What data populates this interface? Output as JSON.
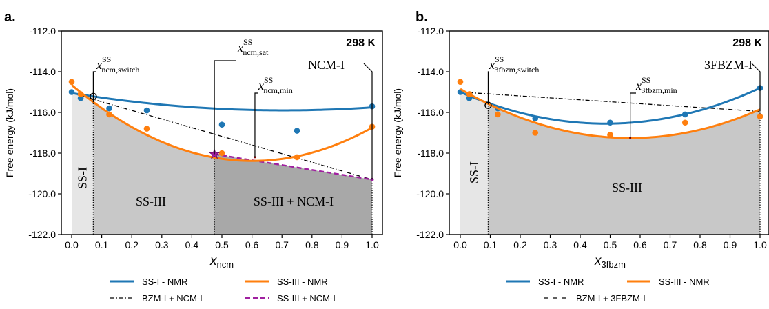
{
  "chart_data": [
    {
      "panel_label": "a.",
      "type": "scatter",
      "temperature_label": "298 K",
      "ylabel": "Free energy (kJ/mol)",
      "xlabel_main": "x",
      "xlabel_sub": "ncm",
      "xlim": [
        0,
        1
      ],
      "ylim": [
        -122,
        -112
      ],
      "xticks": [
        "0.0",
        "0.1",
        "0.2",
        "0.3",
        "0.4",
        "0.5",
        "0.6",
        "0.7",
        "0.8",
        "0.9",
        "1.0"
      ],
      "yticks": [
        "-112.0",
        "-114.0",
        "-116.0",
        "-118.0",
        "-120.0",
        "-122.0"
      ],
      "series": [
        {
          "name": "SS-I - NMR",
          "color": "#1f77b4",
          "x": [
            0.0,
            0.03,
            0.125,
            0.25,
            0.5,
            0.75,
            1.0
          ],
          "y": [
            -115.0,
            -115.3,
            -115.8,
            -115.9,
            -116.6,
            -116.9,
            -115.7
          ],
          "fit": [
            -115.05,
            -2.4,
            1.7
          ]
        },
        {
          "name": "SS-III - NMR",
          "color": "#ff7f0e",
          "x": [
            0.0,
            0.03,
            0.125,
            0.25,
            0.5,
            0.75,
            1.0
          ],
          "y": [
            -114.5,
            -115.1,
            -116.1,
            -116.8,
            -118.0,
            -118.2,
            -116.7
          ],
          "fit": [
            -114.65,
            -12.4,
            10.3
          ]
        },
        {
          "name": "BZM-I + NCM-I",
          "color": "#000000",
          "x": [
            0.0,
            1.0
          ],
          "y": [
            -115.05,
            -119.3
          ]
        },
        {
          "name": "SS-III + NCM-I",
          "color": "#a020a0",
          "x": [
            0.475,
            1.0
          ],
          "y": [
            -118.05,
            -119.3
          ]
        }
      ],
      "region_labels": [
        "SS-I",
        "SS-III",
        "SS-III + NCM-I"
      ],
      "region_bounds": [
        0.0,
        0.072,
        0.475,
        1.0
      ],
      "annotations": [
        {
          "main": "x",
          "sup": "SS",
          "sub": "ncm,switch",
          "at_x": 0.072,
          "at_y": -115.5
        },
        {
          "main": "x",
          "sup": "SS",
          "sub": "ncm,sat",
          "at_x": 0.475,
          "at_y": -118.05
        },
        {
          "main": "x",
          "sup": "SS",
          "sub": "ncm,min",
          "at_x": 0.61,
          "at_y": -118.2
        },
        {
          "main": "NCM-I",
          "at_x": 1.0,
          "at_y": -119.3
        }
      ]
    },
    {
      "panel_label": "b.",
      "type": "scatter",
      "temperature_label": "298 K",
      "ylabel": "Free energy (kJ/mol)",
      "xlabel_main": "x",
      "xlabel_sub": "3fbzm",
      "xlim": [
        0,
        1
      ],
      "ylim": [
        -122,
        -112
      ],
      "xticks": [
        "0.0",
        "0.1",
        "0.2",
        "0.3",
        "0.4",
        "0.5",
        "0.6",
        "0.7",
        "0.8",
        "0.9",
        "1.0"
      ],
      "yticks": [
        "-112.0",
        "-114.0",
        "-116.0",
        "-118.0",
        "-120.0",
        "-122.0"
      ],
      "series": [
        {
          "name": "SS-I - NMR",
          "color": "#1f77b4",
          "x": [
            0.0,
            0.03,
            0.125,
            0.25,
            0.5,
            0.75,
            1.0
          ],
          "y": [
            -115.0,
            -115.3,
            -115.8,
            -116.3,
            -116.5,
            -116.1,
            -114.8
          ],
          "fit": [
            -115.0,
            -6.4,
            6.6
          ]
        },
        {
          "name": "SS-III - NMR",
          "color": "#ff7f0e",
          "x": [
            0.0,
            0.03,
            0.125,
            0.25,
            0.5,
            0.75,
            1.0
          ],
          "y": [
            -114.5,
            -115.1,
            -116.1,
            -117.0,
            -117.1,
            -116.5,
            -116.2
          ],
          "fit": [
            -114.85,
            -8.5,
            7.5
          ]
        },
        {
          "name": "BZM-I + 3FBZM-I",
          "color": "#000000",
          "x": [
            0.0,
            1.0
          ],
          "y": [
            -115.0,
            -115.95
          ]
        }
      ],
      "region_labels": [
        "SS-I",
        "SS-III"
      ],
      "region_bounds": [
        0.0,
        0.093,
        1.0
      ],
      "annotations": [
        {
          "main": "x",
          "sup": "SS",
          "sub": "3fbzm,switch",
          "at_x": 0.093,
          "at_y": -115.6
        },
        {
          "main": "x",
          "sup": "SS",
          "sub": "3fbzm,min",
          "at_x": 0.567,
          "at_y": -117.25
        },
        {
          "main": "3FBZM-I",
          "at_x": 1.0,
          "at_y": -115.95
        }
      ]
    }
  ]
}
